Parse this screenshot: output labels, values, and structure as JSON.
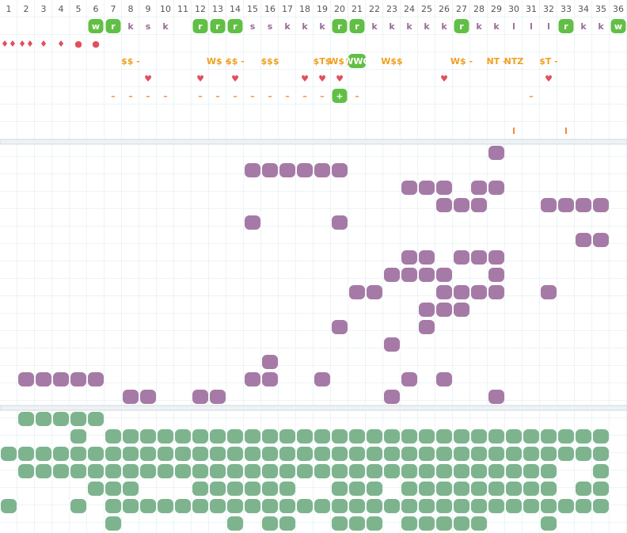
{
  "columns": [
    "1",
    "2",
    "3",
    "4",
    "5",
    "6",
    "7",
    "8",
    "9",
    "10",
    "11",
    "12",
    "13",
    "14",
    "15",
    "16",
    "17",
    "18",
    "19",
    "20",
    "21",
    "22",
    "23",
    "24",
    "25",
    "26",
    "27",
    "28",
    "29",
    "30",
    "31",
    "32",
    "33",
    "34",
    "35",
    "36"
  ],
  "top_rows": [
    {
      "color": "#9b6a9b",
      "cells": [
        null,
        null,
        null,
        null,
        null,
        {
          "text": "w",
          "badge": true
        },
        {
          "text": "r",
          "badge": true
        },
        "k",
        "s",
        "k",
        null,
        {
          "text": "r",
          "badge": true
        },
        {
          "text": "r",
          "badge": true
        },
        {
          "text": "r",
          "badge": true
        },
        "s",
        "s",
        "k",
        "k",
        "k",
        {
          "text": "r",
          "badge": true
        },
        {
          "text": "r",
          "badge": true
        },
        "k",
        "k",
        "k",
        "k",
        "k",
        {
          "text": "r",
          "badge": true
        },
        "k",
        "k",
        "l",
        "l",
        "l",
        {
          "text": "r",
          "badge": true
        },
        "k",
        "k",
        {
          "text": "w",
          "badge": true
        }
      ]
    },
    {
      "color": "#e0505c",
      "cells": [
        "♦♦",
        "♦♦",
        "♦",
        "♦",
        "●",
        "●",
        null,
        null,
        null,
        null,
        null,
        null,
        null,
        null,
        null,
        null,
        null,
        null,
        null,
        null,
        null,
        null,
        null,
        null,
        null,
        null,
        null,
        null,
        null,
        null,
        null,
        null,
        null,
        null,
        null,
        null
      ]
    },
    {
      "color": "#f0a020",
      "cells": [
        null,
        null,
        null,
        null,
        null,
        null,
        null,
        "$$ -",
        null,
        null,
        null,
        null,
        "W$ -",
        "$$ -",
        null,
        "$$$",
        null,
        null,
        "$T$",
        "W$$",
        {
          "text": "WWO",
          "badge": true
        },
        null,
        "W$$",
        null,
        null,
        null,
        "W$ -",
        null,
        "NT -",
        "NTZ",
        null,
        "$T -",
        null,
        null,
        null,
        null
      ]
    },
    {
      "color": "#e0505c",
      "cells": [
        null,
        null,
        null,
        null,
        null,
        null,
        null,
        null,
        "♥",
        null,
        null,
        "♥",
        null,
        "♥",
        null,
        null,
        null,
        "♥",
        "♥",
        "♥",
        null,
        null,
        null,
        null,
        null,
        "♥",
        null,
        null,
        null,
        null,
        null,
        "♥",
        null,
        null,
        null,
        null
      ]
    },
    {
      "color": "#f08a40",
      "cells": [
        null,
        null,
        null,
        null,
        null,
        null,
        "–",
        "–",
        "–",
        "–",
        null,
        "–",
        "–",
        "–",
        "–",
        "–",
        "–",
        "–",
        "–",
        {
          "text": "+",
          "badge": true
        },
        "–",
        null,
        null,
        null,
        null,
        null,
        null,
        null,
        null,
        null,
        "–",
        null,
        null,
        null,
        null,
        null
      ]
    },
    {
      "color": "#f08a40",
      "cells": [
        null,
        null,
        null,
        null,
        null,
        null,
        null,
        null,
        null,
        null,
        null,
        null,
        null,
        null,
        null,
        null,
        null,
        null,
        null,
        null,
        null,
        null,
        null,
        null,
        null,
        null,
        null,
        null,
        null,
        null,
        null,
        null,
        null,
        null,
        null,
        null
      ]
    },
    {
      "color": "#f08a40",
      "cells": [
        null,
        null,
        null,
        null,
        null,
        null,
        null,
        null,
        null,
        null,
        null,
        null,
        null,
        null,
        null,
        null,
        null,
        null,
        null,
        null,
        null,
        null,
        null,
        null,
        null,
        null,
        null,
        null,
        null,
        "I",
        null,
        null,
        "I",
        null,
        null,
        null
      ]
    }
  ],
  "purple_rows": [
    [
      29
    ],
    [
      15,
      16,
      17,
      18,
      19,
      20
    ],
    [
      24,
      25,
      26,
      28,
      29
    ],
    [
      26,
      27,
      28,
      32,
      33,
      34,
      35
    ],
    [
      15,
      20
    ],
    [
      34,
      35
    ],
    [
      24,
      25,
      27,
      28,
      29
    ],
    [
      23,
      24,
      25,
      26,
      29
    ],
    [
      21,
      22,
      26,
      27,
      28,
      29,
      32
    ],
    [
      25,
      26,
      27
    ],
    [
      20,
      25
    ],
    [
      23
    ],
    [
      16
    ],
    [
      2,
      3,
      4,
      5,
      6,
      15,
      16,
      19,
      24,
      26
    ],
    [
      8,
      9,
      12,
      13,
      23,
      29
    ]
  ],
  "green_rows": [
    [
      2,
      3,
      4,
      5,
      6
    ],
    [
      5,
      7,
      8,
      9,
      10,
      11,
      12,
      13,
      14,
      15,
      16,
      17,
      18,
      19,
      20,
      21,
      22,
      23,
      24,
      25,
      26,
      27,
      28,
      29,
      30,
      31,
      32,
      33,
      34,
      35
    ],
    [
      1,
      2,
      3,
      4,
      5,
      6,
      7,
      8,
      9,
      10,
      11,
      12,
      13,
      14,
      15,
      16,
      17,
      18,
      19,
      20,
      21,
      22,
      23,
      24,
      25,
      26,
      27,
      28,
      29,
      30,
      31,
      32,
      33,
      34,
      35
    ],
    [
      2,
      3,
      4,
      5,
      6,
      7,
      8,
      9,
      10,
      11,
      12,
      13,
      14,
      15,
      16,
      17,
      18,
      19,
      20,
      21,
      22,
      23,
      24,
      25,
      26,
      27,
      28,
      29,
      30,
      31,
      32,
      35
    ],
    [
      6,
      7,
      8,
      12,
      13,
      14,
      15,
      16,
      17,
      20,
      21,
      22,
      24,
      25,
      26,
      27,
      28,
      29,
      30,
      31,
      32,
      34,
      35
    ],
    [
      1,
      5,
      7,
      8,
      9,
      10,
      11,
      12,
      13,
      14,
      15,
      16,
      17,
      18,
      19,
      20,
      21,
      22,
      23,
      24,
      25,
      26,
      27,
      28,
      29,
      30,
      31,
      32,
      33,
      34,
      35
    ],
    [
      7,
      14,
      16,
      17,
      20,
      21,
      22,
      24,
      25,
      26,
      27,
      28,
      32
    ]
  ]
}
